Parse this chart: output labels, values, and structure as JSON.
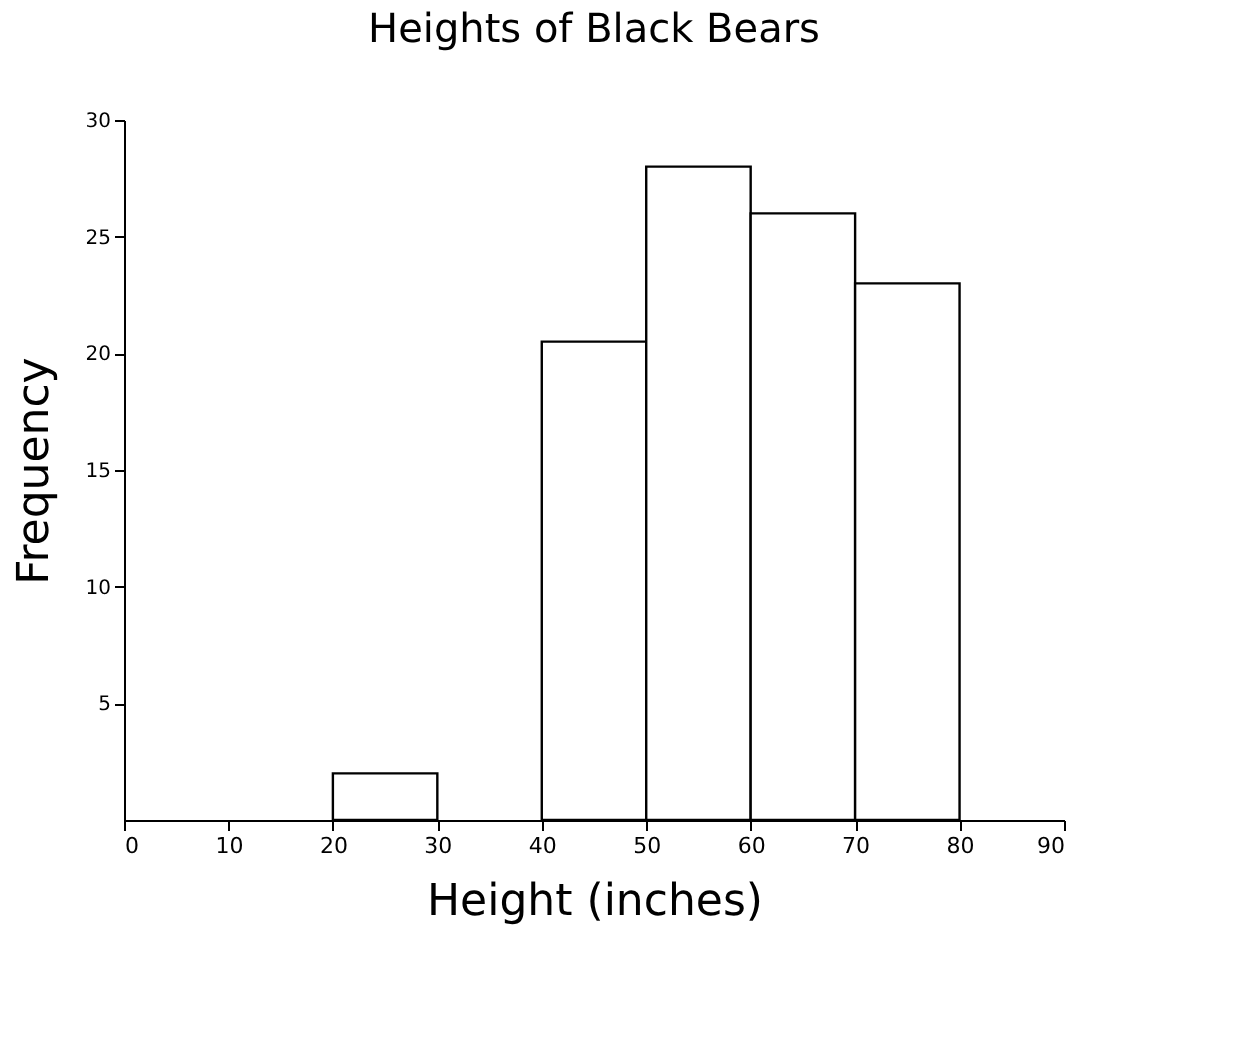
{
  "chart_data": {
    "type": "histogram",
    "title": "Heights of Black Bears",
    "xlabel": "Height (inches)",
    "ylabel": "Frequency",
    "bins": [
      0,
      10,
      20,
      30,
      40,
      50,
      60,
      70,
      80,
      90
    ],
    "values": [
      0,
      0,
      2,
      0,
      20.5,
      28,
      26,
      23,
      0
    ],
    "color": "#ffffff",
    "xlim": [
      0,
      90
    ],
    "xticks": [
      0,
      10,
      20,
      30,
      40,
      50,
      60,
      70,
      80,
      90
    ],
    "ylim": [
      0,
      30
    ],
    "yticks": [
      5,
      10,
      15,
      20,
      25,
      30
    ],
    "grid": false
  }
}
